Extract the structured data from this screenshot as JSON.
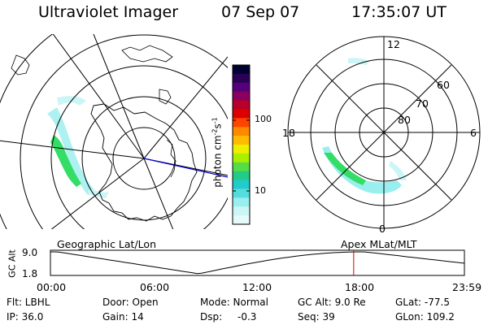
{
  "header": {
    "title": "Ultraviolet Imager",
    "date": "07 Sep 07",
    "time": "17:35:07 UT"
  },
  "colors": {
    "aurora_cyan": "#66e0e0",
    "aurora_green": "#33dd66",
    "orbit_marker": "#cc0000",
    "coast_highlight": "#0000cc"
  },
  "geo_panel": {
    "label": "Geographic Lat/Lon"
  },
  "mag_panel": {
    "label": "Apex MLat/MLT",
    "mlt_labels": [
      "12",
      "18",
      "6",
      "0"
    ],
    "lat_labels": [
      "60",
      "70",
      "80"
    ]
  },
  "colorbar": {
    "unit_label": "photon cm",
    "unit_sup1": "-2",
    "unit_s": "s",
    "unit_sup2": "-1",
    "tick_labels": [
      "100",
      "10"
    ],
    "colors": [
      "#000033",
      "#2a0055",
      "#55007a",
      "#8a0060",
      "#b8002a",
      "#dd0000",
      "#ff4400",
      "#ff8800",
      "#ffbb00",
      "#eeee00",
      "#aaee00",
      "#55dd44",
      "#22cc88",
      "#22cccc",
      "#55dddd",
      "#99eeee",
      "#ccf5f5",
      "#e6fafa"
    ]
  },
  "orbit": {
    "axis_label": "GC Alt",
    "y_ticks": [
      "9.0",
      "1.8"
    ],
    "x_ticks": [
      "00:00",
      "06:00",
      "12:00",
      "18:00",
      "23:59"
    ],
    "current_hour": 17.58
  },
  "info": {
    "filter": "Flt: LBHL",
    "ip": "IP: 36.0",
    "door": "Door: Open",
    "gain": "Gain: 14",
    "mode": "Mode: Normal",
    "dsp_label": "Dsp:",
    "dsp_value": "-0.3",
    "gc_alt": "GC Alt: 9.0 Re",
    "seq": "Seq: 39",
    "glat": "GLat: -77.5",
    "glon": "GLon: 109.2"
  }
}
